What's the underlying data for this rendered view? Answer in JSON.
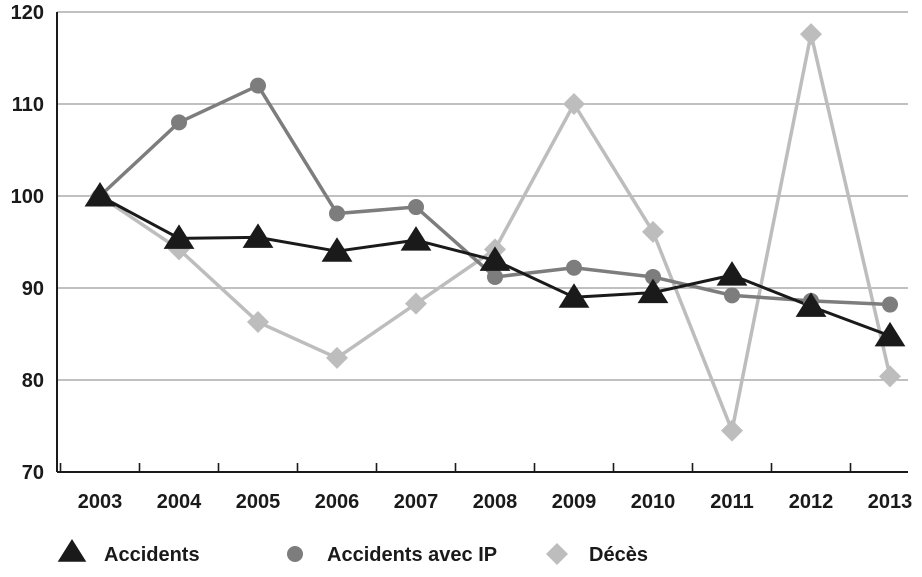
{
  "chart_data": {
    "type": "line",
    "title": "",
    "xlabel": "",
    "ylabel": "",
    "categories": [
      "2003",
      "2004",
      "2005",
      "2006",
      "2007",
      "2008",
      "2009",
      "2010",
      "2011",
      "2012",
      "2013"
    ],
    "ylim": [
      70,
      120
    ],
    "yticks": [
      "70",
      "80",
      "90",
      "100",
      "110",
      "120"
    ],
    "grid": "horizontal",
    "legend_position": "bottom-left",
    "series": [
      {
        "name": "Accidents",
        "marker": "triangle",
        "color": "#1a1a1a",
        "values": [
          100,
          95.4,
          95.5,
          94.0,
          95.2,
          93.0,
          89.0,
          89.5,
          91.4,
          88.0,
          84.8
        ]
      },
      {
        "name": "Accidents avec IP",
        "marker": "circle",
        "color": "#7d7d7d",
        "values": [
          100,
          108,
          112,
          98.1,
          98.8,
          91.2,
          92.2,
          91.2,
          89.2,
          88.6,
          88.2
        ]
      },
      {
        "name": "Décès",
        "marker": "diamond",
        "color": "#bdbdbd",
        "values": [
          100,
          94.2,
          86.3,
          82.4,
          88.3,
          94.2,
          110,
          96.1,
          74.5,
          117.6,
          80.4
        ]
      }
    ]
  }
}
